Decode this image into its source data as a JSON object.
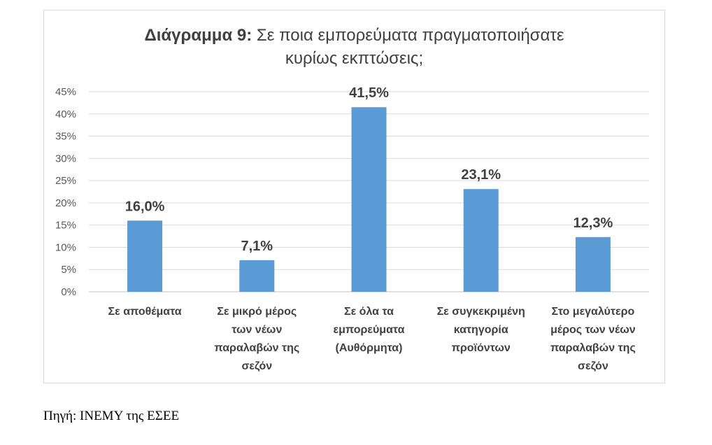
{
  "chart_data": {
    "type": "bar",
    "title_prefix": "Διάγραμμα 9:",
    "title_line1": "Σε ποια εμπορεύματα πραγματοποιήσατε",
    "title_line2": "κυρίως εκπτώσεις;",
    "categories": [
      [
        "Σε αποθέματα"
      ],
      [
        "Σε μικρό μέρος",
        "των νέων",
        "παραλαβών της",
        "σεζόν"
      ],
      [
        "Σε όλα τα",
        "εμπορεύματα",
        "(Αυθόρμητα)"
      ],
      [
        "Σε συγκεκριμένη",
        "κατηγορία",
        "προϊόντων"
      ],
      [
        "Στο μεγαλύτερο",
        "μέρος των νέων",
        "παραλαβών της",
        "σεζόν"
      ]
    ],
    "values": [
      16.0,
      7.1,
      41.5,
      23.1,
      12.3
    ],
    "data_labels": [
      "16,0%",
      "7,1%",
      "41,5%",
      "23,1%",
      "12,3%"
    ],
    "ylim": [
      0,
      45
    ],
    "yticks": [
      0,
      5,
      10,
      15,
      20,
      25,
      30,
      35,
      40,
      45
    ],
    "ytick_labels": [
      "0%",
      "5%",
      "10%",
      "15%",
      "20%",
      "25%",
      "30%",
      "35%",
      "40%",
      "45%"
    ],
    "grid": true,
    "bar_color": "#5b9bd5"
  },
  "source": "Πηγή: ΙΝΕΜΥ της ΕΣΕΕ"
}
